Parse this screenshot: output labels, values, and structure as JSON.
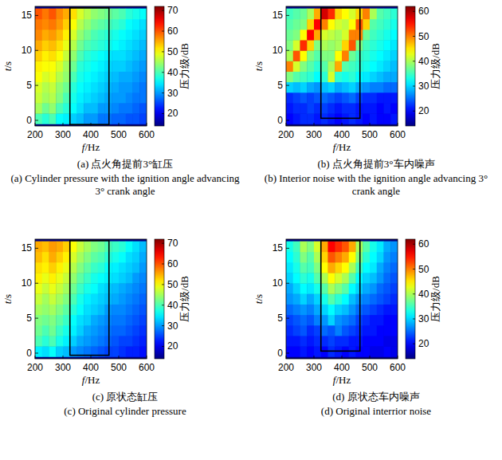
{
  "chart_data": [
    {
      "type": "heatmap",
      "caption": "(a) 点火角提前3°缸压",
      "caption_en": "(a) Cylinder pressure with the ignition angle advancing 3° crank angle",
      "x_label": "f/Hz",
      "y_label": "t/s",
      "xlim": [
        200,
        600
      ],
      "ylim": [
        -0.8,
        16.3
      ],
      "xticks": [
        200,
        300,
        400,
        500,
        600
      ],
      "yticks": [
        0,
        5,
        10,
        15
      ],
      "x_edges": [
        200,
        225,
        250,
        275,
        300,
        325,
        350,
        375,
        400,
        425,
        450,
        475,
        500,
        525,
        550,
        575,
        600
      ],
      "y_edges": [
        -0.5,
        1,
        2.5,
        4,
        5.5,
        7,
        8.5,
        10,
        11.5,
        13,
        14.5,
        16
      ],
      "cells": [
        [
          40,
          38,
          40,
          36,
          35,
          33,
          32,
          30,
          30,
          28,
          28,
          27,
          27,
          26,
          26,
          25
        ],
        [
          45,
          42,
          44,
          40,
          38,
          36,
          34,
          32,
          32,
          30,
          30,
          29,
          28,
          28,
          27,
          26
        ],
        [
          47,
          45,
          46,
          43,
          40,
          37,
          35,
          34,
          33,
          32,
          31,
          30,
          30,
          29,
          28,
          28
        ],
        [
          48,
          46,
          47,
          44,
          42,
          38,
          36,
          35,
          34,
          33,
          32,
          31,
          30,
          30,
          29,
          28
        ],
        [
          50,
          48,
          49,
          46,
          44,
          40,
          37,
          36,
          35,
          34,
          33,
          32,
          31,
          31,
          30,
          29
        ],
        [
          51,
          50,
          50,
          48,
          45,
          42,
          38,
          37,
          36,
          35,
          34,
          33,
          33,
          32,
          31,
          30
        ],
        [
          53,
          51,
          52,
          50,
          47,
          44,
          40,
          38,
          37,
          36,
          35,
          34,
          34,
          33,
          32,
          31
        ],
        [
          55,
          53,
          54,
          52,
          49,
          46,
          42,
          40,
          39,
          38,
          37,
          36,
          35,
          34,
          33,
          32
        ],
        [
          57,
          55,
          56,
          54,
          51,
          48,
          44,
          42,
          40,
          39,
          38,
          37,
          36,
          35,
          34,
          33
        ],
        [
          58,
          57,
          58,
          56,
          53,
          50,
          46,
          44,
          42,
          41,
          40,
          39,
          38,
          36,
          35,
          34
        ],
        [
          60,
          58,
          60,
          57,
          55,
          52,
          48,
          46,
          44,
          43,
          42,
          41,
          40,
          38,
          37,
          36
        ]
      ],
      "colorbar": {
        "label": "压力级/dB",
        "range": [
          14,
          72
        ],
        "ticks": [
          20,
          30,
          40,
          50,
          60,
          70
        ]
      },
      "highlight": {
        "x": [
          325,
          465
        ],
        "y": [
          -0.6,
          16.1
        ]
      }
    },
    {
      "type": "heatmap",
      "caption": "(b) 点火角提前3°车内噪声",
      "caption_en": "(b) Interior noise with the ignition angle advancing 3° crank angle",
      "x_label": "f/Hz",
      "y_label": "t/s",
      "xlim": [
        200,
        600
      ],
      "ylim": [
        -0.8,
        16.3
      ],
      "xticks": [
        200,
        300,
        400,
        500,
        600
      ],
      "yticks": [
        0,
        5,
        10,
        15
      ],
      "x_edges": [
        200,
        225,
        250,
        275,
        300,
        325,
        350,
        375,
        400,
        425,
        450,
        475,
        500,
        525,
        550,
        575,
        600
      ],
      "y_edges": [
        -0.5,
        1,
        2.5,
        4,
        5.5,
        7,
        8.5,
        10,
        11.5,
        13,
        14.5,
        16
      ],
      "cells": [
        [
          20,
          21,
          22,
          22,
          21,
          22,
          21,
          20,
          21,
          22,
          21,
          20,
          21,
          20,
          20,
          21
        ],
        [
          21,
          22,
          22,
          23,
          22,
          23,
          22,
          21,
          22,
          22,
          21,
          21,
          21,
          20,
          21,
          20
        ],
        [
          22,
          23,
          24,
          23,
          24,
          25,
          24,
          23,
          24,
          25,
          23,
          22,
          22,
          21,
          21,
          21
        ],
        [
          30,
          29,
          30,
          28,
          27,
          29,
          30,
          28,
          29,
          30,
          28,
          27,
          26,
          26,
          25,
          25
        ],
        [
          38,
          36,
          35,
          34,
          32,
          34,
          42,
          34,
          33,
          34,
          32,
          31,
          30,
          29,
          28,
          28
        ],
        [
          50,
          42,
          38,
          36,
          34,
          36,
          40,
          48,
          36,
          35,
          34,
          33,
          32,
          31,
          30,
          29
        ],
        [
          40,
          52,
          44,
          38,
          36,
          38,
          38,
          44,
          50,
          37,
          35,
          34,
          33,
          32,
          31,
          30
        ],
        [
          38,
          42,
          54,
          46,
          38,
          40,
          39,
          40,
          46,
          52,
          38,
          35,
          34,
          33,
          32,
          31
        ],
        [
          37,
          38,
          44,
          56,
          48,
          42,
          41,
          40,
          42,
          50,
          50,
          37,
          35,
          34,
          33,
          32
        ],
        [
          36,
          37,
          38,
          46,
          56,
          50,
          44,
          42,
          41,
          44,
          52,
          46,
          36,
          35,
          34,
          33
        ],
        [
          35,
          36,
          37,
          40,
          48,
          58,
          54,
          46,
          44,
          42,
          46,
          50,
          40,
          36,
          35,
          34
        ]
      ],
      "colorbar": {
        "label": "压力级/dB",
        "range": [
          14,
          62
        ],
        "ticks": [
          20,
          30,
          40,
          50,
          60
        ]
      },
      "highlight": {
        "x": [
          325,
          465
        ],
        "y": [
          0.3,
          16.1
        ]
      }
    },
    {
      "type": "heatmap",
      "caption": "(c) 原状态缸压",
      "caption_en": "(c) Original cylinder pressure",
      "x_label": "f/Hz",
      "y_label": "t/s",
      "xlim": [
        200,
        600
      ],
      "ylim": [
        -0.8,
        16.3
      ],
      "xticks": [
        200,
        300,
        400,
        500,
        600
      ],
      "yticks": [
        0,
        5,
        10,
        15
      ],
      "x_edges": [
        200,
        225,
        250,
        275,
        300,
        325,
        350,
        375,
        400,
        425,
        450,
        475,
        500,
        525,
        550,
        575,
        600
      ],
      "y_edges": [
        -0.5,
        1,
        2.5,
        4,
        5.5,
        7,
        8.5,
        10,
        11.5,
        13,
        14.5,
        16
      ],
      "cells": [
        [
          35,
          34,
          36,
          33,
          32,
          30,
          29,
          28,
          27,
          26,
          25,
          25,
          24,
          23,
          23,
          22
        ],
        [
          40,
          38,
          40,
          37,
          35,
          33,
          31,
          30,
          29,
          28,
          27,
          26,
          25,
          25,
          24,
          23
        ],
        [
          42,
          40,
          42,
          39,
          37,
          35,
          33,
          31,
          30,
          29,
          28,
          27,
          27,
          26,
          25,
          24
        ],
        [
          43,
          42,
          43,
          41,
          39,
          36,
          34,
          33,
          31,
          30,
          29,
          28,
          28,
          27,
          26,
          25
        ],
        [
          45,
          44,
          45,
          43,
          41,
          38,
          36,
          34,
          33,
          32,
          30,
          29,
          29,
          28,
          27,
          26
        ],
        [
          47,
          45,
          47,
          45,
          43,
          40,
          37,
          35,
          34,
          33,
          32,
          31,
          30,
          29,
          28,
          27
        ],
        [
          49,
          47,
          49,
          47,
          45,
          42,
          39,
          37,
          36,
          34,
          33,
          32,
          31,
          30,
          29,
          28
        ],
        [
          51,
          49,
          51,
          49,
          47,
          44,
          41,
          39,
          37,
          36,
          35,
          34,
          33,
          32,
          30,
          29
        ],
        [
          52,
          51,
          53,
          51,
          49,
          46,
          43,
          41,
          39,
          38,
          36,
          35,
          34,
          33,
          32,
          30
        ],
        [
          54,
          52,
          55,
          53,
          51,
          48,
          45,
          43,
          41,
          40,
          38,
          37,
          36,
          34,
          33,
          31
        ],
        [
          55,
          54,
          56,
          55,
          53,
          50,
          47,
          45,
          43,
          42,
          40,
          39,
          38,
          36,
          34,
          32
        ]
      ],
      "colorbar": {
        "label": "压力级/dB",
        "range": [
          14,
          72
        ],
        "ticks": [
          20,
          30,
          40,
          50,
          60,
          70
        ]
      },
      "highlight": {
        "x": [
          325,
          465
        ],
        "y": [
          -0.3,
          16.1
        ]
      }
    },
    {
      "type": "heatmap",
      "caption": "(d) 原状态车内噪声",
      "caption_en": "(d) Original interrior noise",
      "x_label": "f/Hz",
      "y_label": "t/s",
      "xlim": [
        200,
        600
      ],
      "ylim": [
        -0.8,
        16.3
      ],
      "xticks": [
        200,
        300,
        400,
        500,
        600
      ],
      "yticks": [
        0,
        5,
        10,
        15
      ],
      "x_edges": [
        200,
        225,
        250,
        275,
        300,
        325,
        350,
        375,
        400,
        425,
        450,
        475,
        500,
        525,
        550,
        575,
        600
      ],
      "y_edges": [
        -0.5,
        1,
        2.5,
        4,
        5.5,
        7,
        8.5,
        10,
        11.5,
        13,
        14.5,
        16
      ],
      "cells": [
        [
          20,
          20,
          21,
          20,
          21,
          20,
          22,
          21,
          20,
          21,
          20,
          20,
          19,
          19,
          20,
          19
        ],
        [
          21,
          21,
          22,
          21,
          22,
          22,
          23,
          22,
          22,
          21,
          21,
          20,
          20,
          20,
          19,
          19
        ],
        [
          22,
          23,
          24,
          22,
          23,
          25,
          24,
          26,
          24,
          23,
          22,
          21,
          21,
          20,
          20,
          20
        ],
        [
          23,
          24,
          25,
          24,
          26,
          27,
          30,
          27,
          26,
          25,
          23,
          22,
          21,
          21,
          20,
          20
        ],
        [
          25,
          26,
          27,
          26,
          28,
          30,
          32,
          30,
          29,
          27,
          25,
          24,
          23,
          22,
          21,
          21
        ],
        [
          27,
          28,
          30,
          28,
          30,
          33,
          36,
          34,
          32,
          29,
          27,
          26,
          25,
          24,
          23,
          22
        ],
        [
          28,
          30,
          32,
          31,
          33,
          36,
          40,
          38,
          36,
          32,
          30,
          28,
          27,
          25,
          24,
          23
        ],
        [
          30,
          32,
          34,
          33,
          36,
          40,
          44,
          42,
          40,
          36,
          32,
          30,
          29,
          27,
          25,
          24
        ],
        [
          31,
          33,
          36,
          35,
          38,
          44,
          48,
          46,
          44,
          40,
          35,
          32,
          31,
          28,
          26,
          25
        ],
        [
          32,
          34,
          38,
          36,
          40,
          46,
          52,
          50,
          48,
          44,
          38,
          34,
          32,
          30,
          27,
          26
        ],
        [
          33,
          35,
          40,
          38,
          42,
          48,
          56,
          54,
          52,
          48,
          40,
          36,
          33,
          31,
          28,
          27
        ]
      ],
      "colorbar": {
        "label": "压力级/dB",
        "range": [
          14,
          62
        ],
        "ticks": [
          20,
          30,
          40,
          50,
          60
        ]
      },
      "highlight": {
        "x": [
          325,
          465
        ],
        "y": [
          0.3,
          16.1
        ]
      }
    }
  ]
}
